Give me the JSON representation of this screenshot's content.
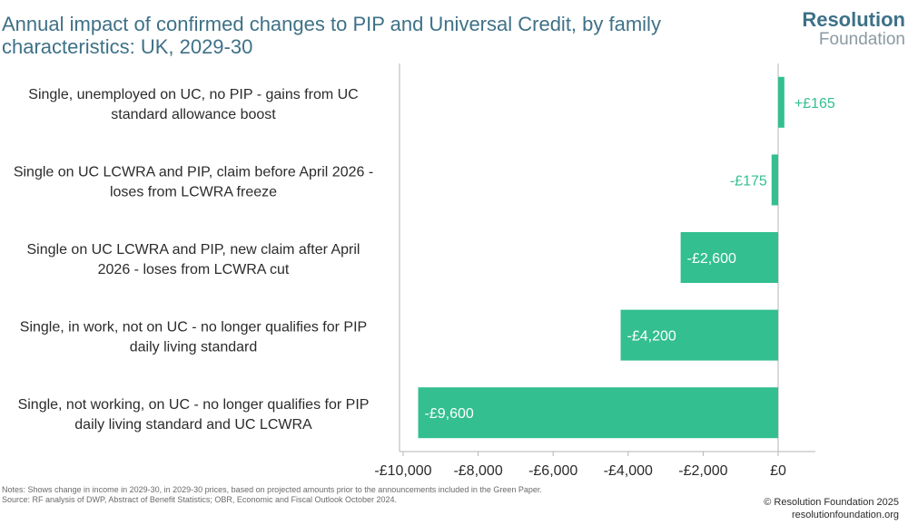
{
  "title": "Annual impact of confirmed changes to PIP and Universal Credit, by family characteristics: UK, 2029-30",
  "logo": {
    "line1": "Resolution",
    "line2": "Foundation"
  },
  "chart_data": {
    "type": "bar",
    "orientation": "horizontal",
    "categories": [
      "Single, unemployed on UC, no PIP - gains from UC standard allowance boost",
      "Single on UC LCWRA and PIP, claim before April 2026 - loses from LCWRA freeze",
      "Single on UC LCWRA and PIP, new claim after April 2026 - loses from LCWRA cut",
      "Single, in work, not on UC - no longer qualifies for PIP daily living standard",
      "Single, not working, on UC - no longer qualifies for PIP daily living standard and UC LCWRA"
    ],
    "category_lines": [
      [
        "Single, unemployed on UC, no PIP - gains from UC",
        "standard allowance boost"
      ],
      [
        "Single on UC LCWRA and PIP, claim before April 2026 -",
        "loses from LCWRA freeze"
      ],
      [
        "Single on UC LCWRA and PIP, new claim after April",
        "2026 - loses from LCWRA cut"
      ],
      [
        "Single, in work, not on UC - no longer qualifies for PIP",
        "daily living standard"
      ],
      [
        "Single, not working, on UC - no longer qualifies for PIP",
        "daily living standard and UC LCWRA"
      ]
    ],
    "values": [
      165,
      -175,
      -2600,
      -4200,
      -9600
    ],
    "data_labels": [
      "+£165",
      "-£175",
      "-£2,600",
      "-£4,200",
      "-£9,600"
    ],
    "xlim": [
      -10000,
      0
    ],
    "xticks": [
      -10000,
      -8000,
      -6000,
      -4000,
      -2000,
      0
    ],
    "xtick_labels": [
      "-£10,000",
      "-£8,000",
      "-£6,000",
      "-£4,000",
      "-£2,000",
      "£0"
    ],
    "xlabel": "",
    "ylabel": "",
    "bar_color": "#33bf8f",
    "grid": false
  },
  "notes": {
    "line1": "Notes: Shows change in income in 2029-30, in 2029-30 prices, based on projected amounts prior to the announcements included in the Green Paper.",
    "line2": "Source: RF analysis of DWP, Abstract of Benefit Statistics; OBR, Economic and Fiscal Outlook October 2024."
  },
  "copyright": {
    "line1": "© Resolution Foundation 2025",
    "line2": "resolutionfoundation.org"
  }
}
